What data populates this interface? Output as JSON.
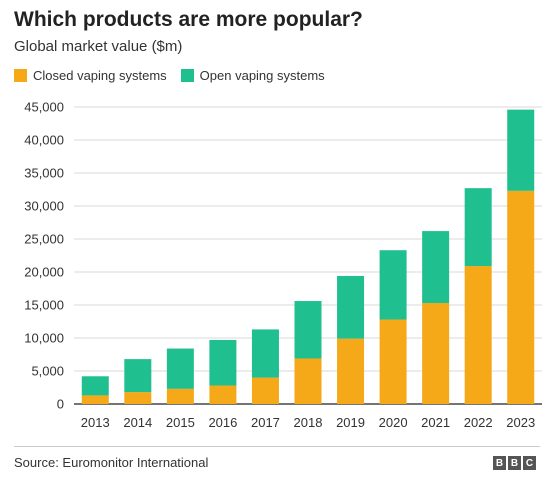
{
  "header": {
    "title": "Which products are more popular?",
    "subtitle": "Global market value ($m)"
  },
  "footer": {
    "source": "Source: Euromonitor International",
    "logo_letters": [
      "B",
      "B",
      "C"
    ]
  },
  "colors": {
    "closed": "#f5a818",
    "open": "#1fbf8f",
    "grid": "#d9d9d9",
    "axis": "#222222"
  },
  "chart_data": {
    "type": "bar",
    "stacked": true,
    "title": "Which products are more popular?",
    "subtitle": "Global market value ($m)",
    "xlabel": "",
    "ylabel": "",
    "categories": [
      "2013",
      "2014",
      "2015",
      "2016",
      "2017",
      "2018",
      "2019",
      "2020",
      "2021",
      "2022",
      "2023"
    ],
    "series": [
      {
        "name": "Closed vaping systems",
        "values": [
          1300,
          1800,
          2300,
          2800,
          4000,
          6900,
          9900,
          12800,
          15300,
          20900,
          32300
        ]
      },
      {
        "name": "Open vaping systems",
        "values": [
          2900,
          5000,
          6100,
          6900,
          7300,
          8700,
          9500,
          10500,
          10900,
          11800,
          12300
        ]
      }
    ],
    "ylim": [
      0,
      45000
    ],
    "yticks": [
      0,
      5000,
      10000,
      15000,
      20000,
      25000,
      30000,
      35000,
      40000,
      45000
    ],
    "ytick_labels": [
      "0",
      "5,000",
      "10,000",
      "15,000",
      "20,000",
      "25,000",
      "30,000",
      "35,000",
      "40,000",
      "45,000"
    ],
    "grid": true,
    "legend_position": "top-left"
  }
}
